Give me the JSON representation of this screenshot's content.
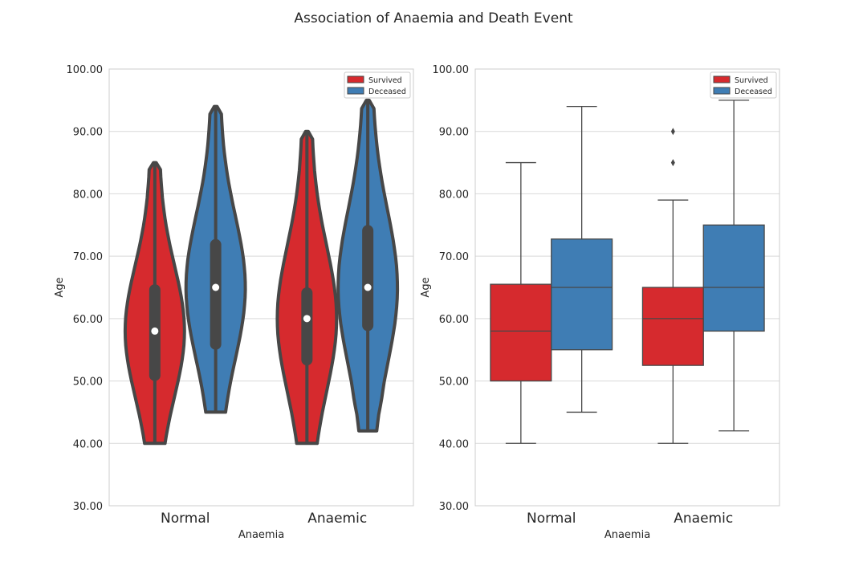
{
  "title": "Association of Anaemia and Death Event",
  "colors": {
    "survived": "#d62a2e",
    "deceased": "#3f7db4",
    "edge": "#474747",
    "grid": "#d9d9d9"
  },
  "chart_data": [
    {
      "type": "violin",
      "xlabel": "Anaemia",
      "ylabel": "Age",
      "ylim": [
        30,
        100
      ],
      "yticks": [
        "30.00",
        "40.00",
        "50.00",
        "60.00",
        "70.00",
        "80.00",
        "90.00",
        "100.00"
      ],
      "categories": [
        "Normal",
        "Anaemic"
      ],
      "legend": {
        "position": "top-right",
        "entries": [
          "Survived",
          "Deceased"
        ]
      },
      "grid": true,
      "series": [
        {
          "name": "Survived",
          "groups": [
            {
              "category": "Normal",
              "min": 40,
              "q1": 50,
              "median": 58,
              "q3": 65.5,
              "max": 85
            },
            {
              "category": "Anaemic",
              "min": 40,
              "q1": 52.5,
              "median": 60,
              "q3": 65,
              "max": 90
            }
          ]
        },
        {
          "name": "Deceased",
          "groups": [
            {
              "category": "Normal",
              "min": 45,
              "q1": 55,
              "median": 65,
              "q3": 72.75,
              "max": 94
            },
            {
              "category": "Anaemic",
              "min": 42,
              "q1": 58,
              "median": 65,
              "q3": 75,
              "max": 95
            }
          ]
        }
      ]
    },
    {
      "type": "box",
      "xlabel": "Anaemia",
      "ylabel": "Age",
      "ylim": [
        30,
        100
      ],
      "yticks": [
        "30.00",
        "40.00",
        "50.00",
        "60.00",
        "70.00",
        "80.00",
        "90.00",
        "100.00"
      ],
      "categories": [
        "Normal",
        "Anaemic"
      ],
      "legend": {
        "position": "top-right",
        "entries": [
          "Survived",
          "Deceased"
        ]
      },
      "grid": true,
      "series": [
        {
          "name": "Survived",
          "groups": [
            {
              "category": "Normal",
              "whisker_low": 40,
              "q1": 50,
              "median": 58,
              "q3": 65.5,
              "whisker_high": 85,
              "outliers": []
            },
            {
              "category": "Anaemic",
              "whisker_low": 40,
              "q1": 52.5,
              "median": 60,
              "q3": 65,
              "whisker_high": 79,
              "outliers": [
                85,
                90
              ]
            }
          ]
        },
        {
          "name": "Deceased",
          "groups": [
            {
              "category": "Normal",
              "whisker_low": 45,
              "q1": 55,
              "median": 65,
              "q3": 72.75,
              "whisker_high": 94,
              "outliers": []
            },
            {
              "category": "Anaemic",
              "whisker_low": 42,
              "q1": 58,
              "median": 65,
              "q3": 75,
              "whisker_high": 95,
              "outliers": []
            }
          ]
        }
      ]
    }
  ]
}
